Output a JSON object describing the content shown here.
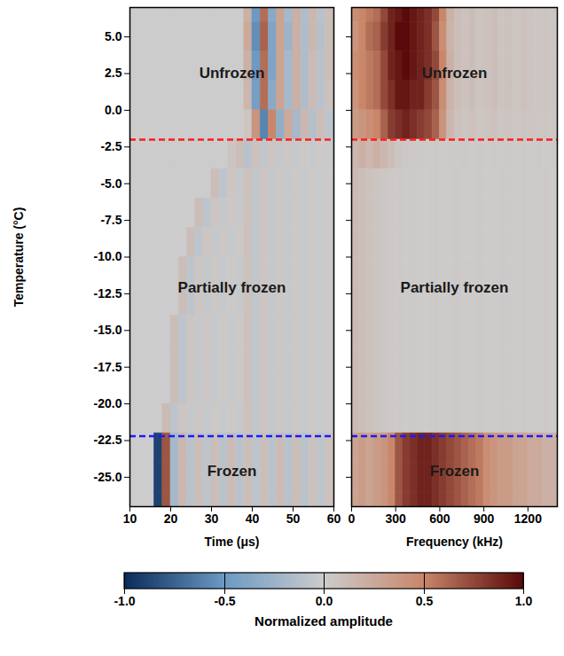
{
  "chart_data": [
    {
      "type": "heatmap",
      "xlabel": "Time (μs)",
      "ylabel": "Temperature (°C)",
      "xlim": [
        10,
        60
      ],
      "xticks": [
        10,
        20,
        30,
        40,
        50,
        60
      ],
      "ylim": [
        -27,
        7
      ],
      "yticks": [
        {
          "value": 5,
          "label": "5.0"
        },
        2.5,
        {
          "value": 0,
          "label": "0.0"
        },
        -2.5,
        {
          "value": -5,
          "label": "-5.0"
        },
        -7.5,
        {
          "value": -10,
          "label": "-10.0"
        },
        -12.5,
        {
          "value": -15,
          "label": "-15.0"
        },
        -17.5,
        {
          "value": -20,
          "label": "-20.0"
        },
        -22.5,
        {
          "value": -25,
          "label": "-25.0"
        }
      ],
      "regions": [
        "Unfrozen",
        "Partially frozen",
        "Frozen"
      ],
      "boundaries": [
        {
          "value": -2,
          "color": "#ff1a1a",
          "line_style": "dashed"
        },
        {
          "value": -22.2,
          "color": "#1a1aff",
          "line_style": "dashed"
        }
      ],
      "x_edges": [
        10,
        12,
        14,
        16,
        18,
        20,
        22,
        24,
        26,
        28,
        30,
        32,
        34,
        36,
        38,
        40,
        42,
        44,
        46,
        48,
        50,
        52,
        54,
        56,
        58,
        60
      ],
      "y_edges": [
        7,
        6,
        4,
        2,
        0,
        -2,
        -4,
        -6,
        -8,
        -10,
        -12,
        -14,
        -16,
        -18,
        -20,
        -22,
        -24,
        -26,
        -27
      ],
      "cells": [
        [
          0,
          0,
          0,
          0,
          0,
          0,
          0,
          0,
          0,
          0,
          0,
          0,
          0,
          0,
          0.2,
          -0.5,
          0.6,
          -0.35,
          0.3,
          -0.2,
          0.2,
          -0.15,
          0.15,
          -0.1,
          0.1
        ],
        [
          0,
          0,
          0,
          0,
          0,
          0,
          0,
          0,
          0,
          0,
          0,
          0,
          0,
          0,
          0.25,
          -0.55,
          0.65,
          -0.4,
          0.3,
          -0.25,
          0.2,
          -0.15,
          0.15,
          -0.12,
          0.1
        ],
        [
          0,
          0,
          0,
          0,
          0,
          0,
          0,
          0,
          0,
          0,
          0,
          0,
          0,
          0,
          0.2,
          -0.5,
          0.6,
          -0.4,
          0.3,
          -0.2,
          0.2,
          -0.15,
          0.12,
          -0.1,
          0.1
        ],
        [
          0,
          0,
          0,
          0,
          0,
          0,
          0,
          0,
          0,
          0,
          0,
          0,
          0,
          0,
          0.15,
          -0.45,
          0.6,
          -0.35,
          0.3,
          -0.2,
          0.2,
          -0.15,
          0.12,
          -0.1,
          0.08
        ],
        [
          0,
          0,
          0,
          0,
          0,
          0,
          0,
          0,
          0,
          0,
          0,
          0,
          0,
          0,
          0.05,
          0.4,
          -0.6,
          0.5,
          -0.3,
          0.25,
          -0.2,
          0.15,
          -0.12,
          0.1,
          -0.08
        ],
        [
          0,
          0,
          0,
          0,
          0,
          0,
          0,
          0,
          0,
          0,
          0,
          0,
          0.06,
          0.1,
          -0.1,
          0.08,
          -0.06,
          0.05,
          -0.04,
          0.04,
          -0.03,
          0.03,
          -0.03,
          0.02,
          -0.02
        ],
        [
          0,
          0,
          0,
          0,
          0,
          0,
          0,
          0,
          0,
          0,
          0.1,
          -0.08,
          0.05,
          -0.04,
          0.08,
          -0.06,
          0.05,
          -0.04,
          0.04,
          -0.03,
          0.03,
          -0.03,
          0.02,
          -0.02,
          0.02
        ],
        [
          0,
          0,
          0,
          0,
          0,
          0,
          0,
          0,
          0.1,
          -0.08,
          0.05,
          -0.04,
          0.04,
          -0.03,
          0.08,
          -0.06,
          0.05,
          -0.04,
          0.04,
          -0.03,
          0.03,
          -0.03,
          0.02,
          -0.02,
          0.02
        ],
        [
          0,
          0,
          0,
          0,
          0,
          0,
          0,
          0.1,
          -0.08,
          0.05,
          -0.04,
          0.04,
          -0.03,
          0.03,
          0.08,
          -0.06,
          0.05,
          -0.04,
          0.04,
          -0.03,
          0.03,
          -0.03,
          0.02,
          -0.02,
          0.02
        ],
        [
          0,
          0,
          0,
          0,
          0,
          0,
          0.1,
          -0.08,
          0.05,
          -0.04,
          0.04,
          -0.03,
          0.03,
          -0.03,
          0.08,
          -0.06,
          0.05,
          -0.04,
          0.04,
          -0.03,
          0.03,
          -0.03,
          0.02,
          -0.02,
          0.02
        ],
        [
          0,
          0,
          0,
          0,
          0,
          0,
          0.1,
          -0.08,
          0.05,
          -0.04,
          0.04,
          -0.03,
          0.03,
          -0.03,
          0.08,
          -0.06,
          0.05,
          -0.04,
          0.04,
          -0.03,
          0.03,
          -0.03,
          0.02,
          -0.02,
          0.02
        ],
        [
          0,
          0,
          0,
          0,
          0,
          0.1,
          -0.08,
          0.05,
          -0.04,
          0.04,
          -0.03,
          0.03,
          -0.03,
          0.03,
          0.08,
          -0.06,
          0.05,
          -0.04,
          0.04,
          -0.03,
          0.03,
          -0.03,
          0.02,
          -0.02,
          0.02
        ],
        [
          0,
          0,
          0,
          0,
          0,
          0.1,
          -0.08,
          0.05,
          -0.04,
          0.04,
          -0.03,
          0.03,
          -0.03,
          0.03,
          0.08,
          -0.06,
          0.05,
          -0.04,
          0.04,
          -0.03,
          0.03,
          -0.03,
          0.02,
          -0.02,
          0.02
        ],
        [
          0,
          0,
          0,
          0,
          0,
          0.1,
          -0.08,
          0.05,
          -0.04,
          0.04,
          -0.03,
          0.03,
          -0.03,
          0.03,
          0.08,
          -0.06,
          0.05,
          -0.04,
          0.04,
          -0.03,
          0.03,
          -0.03,
          0.02,
          -0.02,
          0.02
        ],
        [
          0,
          0,
          0,
          0,
          0.12,
          -0.08,
          0.05,
          -0.04,
          0.04,
          -0.03,
          0.03,
          -0.03,
          0.03,
          -0.03,
          0.08,
          -0.06,
          0.05,
          -0.04,
          0.04,
          -0.03,
          0.03,
          -0.03,
          0.02,
          -0.02,
          0.02
        ],
        [
          0,
          0,
          0,
          -0.9,
          0.7,
          -0.2,
          0.15,
          -0.1,
          0.1,
          -0.08,
          0.1,
          -0.1,
          0.12,
          -0.1,
          0.1,
          -0.08,
          0.1,
          -0.1,
          0.12,
          -0.1,
          0.1,
          -0.1,
          0.08,
          -0.08,
          0.08
        ],
        [
          0,
          0,
          0,
          -0.9,
          0.7,
          -0.2,
          0.15,
          -0.1,
          0.1,
          -0.08,
          0.1,
          -0.1,
          0.12,
          -0.1,
          0.1,
          -0.08,
          0.1,
          -0.1,
          0.12,
          -0.1,
          0.1,
          -0.1,
          0.08,
          -0.08,
          0.08
        ],
        [
          0,
          0,
          0,
          -0.9,
          0.7,
          -0.2,
          0.15,
          -0.1,
          0.1,
          -0.08,
          0.1,
          -0.1,
          0.12,
          -0.1,
          0.1,
          -0.08,
          0.1,
          -0.1,
          0.12,
          -0.1,
          0.1,
          -0.1,
          0.08,
          -0.08,
          0.08
        ]
      ],
      "colorbar": {
        "range": [
          -1,
          1
        ],
        "ticks": [
          {
            "value": -1,
            "label": "-1.0"
          },
          -0.5,
          {
            "value": 0,
            "label": "0.0"
          },
          0.5,
          {
            "value": 1,
            "label": "1.0"
          }
        ],
        "label": "Normalized amplitude",
        "colors": [
          "#0b2c5c",
          "#6c9ac4",
          "#cccccc",
          "#c9876a",
          "#5a0a0a"
        ]
      }
    },
    {
      "type": "heatmap",
      "xlabel": "Frequency (kHz)",
      "xlim": [
        0,
        1400
      ],
      "xticks": [
        0,
        300,
        600,
        900,
        1200
      ],
      "ylim": [
        -27,
        7
      ],
      "yticks": [
        {
          "value": 5,
          "label": "5.0"
        },
        2.5,
        {
          "value": 0,
          "label": "0.0"
        },
        -2.5,
        {
          "value": -5,
          "label": "-5.0"
        },
        -7.5,
        {
          "value": -10,
          "label": "-10.0"
        },
        -12.5,
        {
          "value": -15,
          "label": "-15.0"
        },
        -17.5,
        {
          "value": -20,
          "label": "-20.0"
        },
        -22.5,
        {
          "value": -25,
          "label": "-25.0"
        }
      ],
      "tick_labels": "x",
      "regions": [
        "Unfrozen",
        "Partially frozen",
        "Frozen"
      ],
      "boundaries": [
        {
          "value": -2,
          "color": "#ff1a1a",
          "line_style": "dashed"
        },
        {
          "value": -22.2,
          "color": "#1a1aff",
          "line_style": "dashed"
        }
      ],
      "x_edges": [
        0,
        50,
        100,
        150,
        200,
        250,
        300,
        350,
        400,
        450,
        500,
        550,
        600,
        650,
        700,
        750,
        800,
        850,
        900,
        950,
        1000,
        1050,
        1100,
        1150,
        1200,
        1250,
        1300,
        1350,
        1400
      ],
      "y_edges": [
        7,
        6,
        4,
        2,
        0,
        -2,
        -4,
        -6,
        -8,
        -10,
        -12,
        -14,
        -16,
        -18,
        -20,
        -22,
        -24,
        -26,
        -27
      ],
      "cells": [
        [
          0.45,
          0.5,
          0.55,
          0.6,
          0.75,
          0.9,
          0.95,
          1.0,
          0.95,
          0.9,
          0.85,
          0.75,
          0.5,
          0.2,
          0.1,
          0.08,
          0.1,
          0.06,
          0.08,
          0.1,
          0.06,
          0.08,
          0.05,
          0.08,
          0.06,
          0.05,
          0.06,
          0.05
        ],
        [
          0.4,
          0.5,
          0.6,
          0.65,
          0.8,
          0.9,
          1.0,
          1.0,
          0.95,
          0.9,
          0.85,
          0.7,
          0.45,
          0.18,
          0.1,
          0.08,
          0.1,
          0.06,
          0.08,
          0.1,
          0.06,
          0.08,
          0.05,
          0.08,
          0.06,
          0.05,
          0.06,
          0.05
        ],
        [
          0.45,
          0.5,
          0.55,
          0.6,
          0.75,
          0.9,
          0.95,
          1.0,
          0.95,
          0.9,
          0.85,
          0.75,
          0.5,
          0.2,
          0.1,
          0.08,
          0.1,
          0.06,
          0.08,
          0.1,
          0.06,
          0.08,
          0.05,
          0.08,
          0.06,
          0.05,
          0.06,
          0.05
        ],
        [
          0.4,
          0.5,
          0.55,
          0.6,
          0.75,
          0.85,
          0.95,
          0.95,
          0.9,
          0.9,
          0.8,
          0.7,
          0.45,
          0.18,
          0.1,
          0.08,
          0.1,
          0.06,
          0.08,
          0.1,
          0.06,
          0.08,
          0.05,
          0.08,
          0.06,
          0.05,
          0.06,
          0.05
        ],
        [
          0.35,
          0.4,
          0.45,
          0.5,
          0.65,
          0.8,
          0.85,
          0.9,
          0.85,
          0.8,
          0.75,
          0.65,
          0.4,
          0.15,
          0.08,
          0.06,
          0.08,
          0.05,
          0.06,
          0.08,
          0.05,
          0.06,
          0.04,
          0.06,
          0.05,
          0.04,
          0.05,
          0.04
        ],
        [
          0.15,
          0.2,
          0.15,
          0.2,
          0.15,
          0.1,
          0.05,
          0.03,
          0.02,
          0.02,
          0.01,
          0.02,
          0.01,
          0.02,
          0.01,
          0.02,
          0.01,
          0.02,
          0.01,
          0.02,
          0.01,
          0.02,
          0.01,
          0.02,
          0.01,
          0.02,
          0.01,
          0.02
        ],
        [
          0.12,
          0.1,
          0.08,
          0.06,
          0.04,
          0.03,
          0.02,
          0.01,
          0.02,
          0.01,
          0.01,
          0.02,
          0.01,
          0.01,
          0.02,
          0.01,
          0.01,
          0.02,
          0.01,
          0.01,
          0.02,
          0.01,
          0.01,
          0.02,
          0.01,
          0.01,
          0.02,
          0.01
        ],
        [
          0.12,
          0.1,
          0.08,
          0.06,
          0.04,
          0.03,
          0.02,
          0.01,
          0.02,
          0.01,
          0.01,
          0.02,
          0.01,
          0.01,
          0.02,
          0.01,
          0.01,
          0.02,
          0.01,
          0.01,
          0.02,
          0.01,
          0.01,
          0.02,
          0.01,
          0.01,
          0.02,
          0.01
        ],
        [
          0.12,
          0.1,
          0.08,
          0.06,
          0.04,
          0.03,
          0.02,
          0.01,
          0.02,
          0.01,
          0.01,
          0.02,
          0.01,
          0.01,
          0.02,
          0.01,
          0.01,
          0.02,
          0.01,
          0.01,
          0.02,
          0.01,
          0.01,
          0.02,
          0.01,
          0.01,
          0.02,
          0.01
        ],
        [
          0.12,
          0.1,
          0.08,
          0.06,
          0.04,
          0.03,
          0.02,
          0.01,
          0.02,
          0.01,
          0.01,
          0.02,
          0.01,
          0.01,
          0.02,
          0.01,
          0.01,
          0.02,
          0.01,
          0.01,
          0.02,
          0.01,
          0.01,
          0.02,
          0.01,
          0.01,
          0.02,
          0.01
        ],
        [
          0.12,
          0.1,
          0.08,
          0.06,
          0.04,
          0.03,
          0.02,
          0.01,
          0.02,
          0.01,
          0.01,
          0.02,
          0.01,
          0.01,
          0.02,
          0.01,
          0.01,
          0.02,
          0.01,
          0.01,
          0.02,
          0.01,
          0.01,
          0.02,
          0.01,
          0.01,
          0.02,
          0.01
        ],
        [
          0.12,
          0.1,
          0.08,
          0.06,
          0.04,
          0.03,
          0.02,
          0.01,
          0.02,
          0.01,
          0.01,
          0.02,
          0.01,
          0.01,
          0.02,
          0.01,
          0.01,
          0.02,
          0.01,
          0.01,
          0.02,
          0.01,
          0.01,
          0.02,
          0.01,
          0.01,
          0.02,
          0.01
        ],
        [
          0.12,
          0.1,
          0.08,
          0.06,
          0.04,
          0.03,
          0.02,
          0.01,
          0.02,
          0.01,
          0.01,
          0.02,
          0.01,
          0.01,
          0.02,
          0.01,
          0.01,
          0.02,
          0.01,
          0.01,
          0.02,
          0.01,
          0.01,
          0.02,
          0.01,
          0.01,
          0.02,
          0.01
        ],
        [
          0.12,
          0.1,
          0.08,
          0.06,
          0.04,
          0.03,
          0.02,
          0.01,
          0.02,
          0.01,
          0.01,
          0.02,
          0.01,
          0.01,
          0.02,
          0.01,
          0.01,
          0.02,
          0.01,
          0.01,
          0.02,
          0.01,
          0.01,
          0.02,
          0.01,
          0.01,
          0.02,
          0.01
        ],
        [
          0.12,
          0.1,
          0.08,
          0.06,
          0.04,
          0.03,
          0.02,
          0.01,
          0.02,
          0.01,
          0.01,
          0.02,
          0.01,
          0.01,
          0.02,
          0.01,
          0.01,
          0.02,
          0.01,
          0.01,
          0.02,
          0.01,
          0.01,
          0.02,
          0.01,
          0.01,
          0.02,
          0.01
        ],
        [
          0.3,
          0.35,
          0.3,
          0.35,
          0.4,
          0.5,
          0.7,
          0.8,
          0.85,
          0.9,
          0.9,
          0.85,
          0.8,
          0.75,
          0.7,
          0.65,
          0.6,
          0.55,
          0.45,
          0.4,
          0.35,
          0.35,
          0.3,
          0.3,
          0.25,
          0.25,
          0.2,
          0.2
        ],
        [
          0.3,
          0.35,
          0.3,
          0.35,
          0.4,
          0.5,
          0.7,
          0.8,
          0.85,
          0.9,
          0.9,
          0.85,
          0.8,
          0.75,
          0.7,
          0.65,
          0.6,
          0.55,
          0.45,
          0.4,
          0.35,
          0.35,
          0.3,
          0.3,
          0.25,
          0.25,
          0.2,
          0.2
        ],
        [
          0.3,
          0.35,
          0.3,
          0.35,
          0.4,
          0.5,
          0.7,
          0.8,
          0.85,
          0.9,
          0.9,
          0.85,
          0.8,
          0.75,
          0.7,
          0.65,
          0.6,
          0.55,
          0.45,
          0.4,
          0.35,
          0.35,
          0.3,
          0.3,
          0.25,
          0.25,
          0.2,
          0.2
        ]
      ]
    }
  ]
}
